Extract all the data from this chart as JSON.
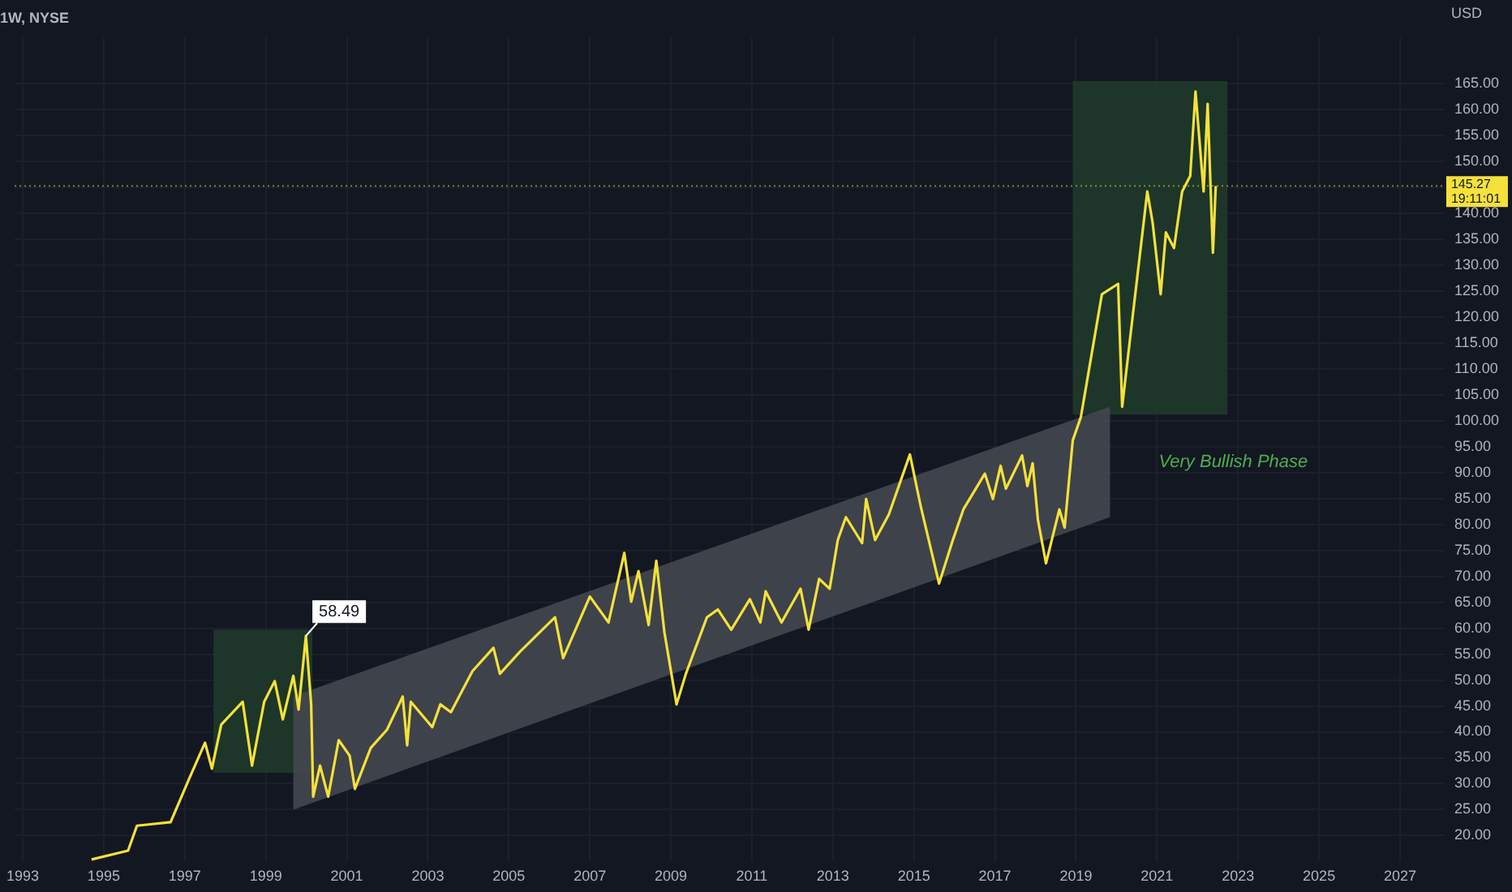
{
  "chart_data": {
    "type": "line",
    "title": "1W, NYSE",
    "ylabel": "USD",
    "xlim": [
      1992.8,
      2028.1
    ],
    "xticks": [
      1993,
      1995,
      1997,
      1999,
      2001,
      2003,
      2005,
      2007,
      2009,
      2011,
      2013,
      2015,
      2017,
      2019,
      2021,
      2023,
      2025,
      2027
    ],
    "ylim": [
      15,
      174
    ],
    "yticks": [
      {
        "value": 20,
        "label": "20.00"
      },
      {
        "value": 25,
        "label": "25.00"
      },
      {
        "value": 30,
        "label": "30.00"
      },
      {
        "value": 35,
        "label": "35.00"
      },
      {
        "value": 40,
        "label": "40.00"
      },
      {
        "value": 45,
        "label": "45.00"
      },
      {
        "value": 50,
        "label": "50.00"
      },
      {
        "value": 55,
        "label": "55.00"
      },
      {
        "value": 60,
        "label": "60.00"
      },
      {
        "value": 65,
        "label": "65.00"
      },
      {
        "value": 70,
        "label": "70.00"
      },
      {
        "value": 75,
        "label": "75.00"
      },
      {
        "value": 80,
        "label": "80.00"
      },
      {
        "value": 85,
        "label": "85.00"
      },
      {
        "value": 90,
        "label": "90.00"
      },
      {
        "value": 95,
        "label": "95.00"
      },
      {
        "value": 100,
        "label": "100.00"
      },
      {
        "value": 105,
        "label": "105.00"
      },
      {
        "value": 110,
        "label": "110.00"
      },
      {
        "value": 115,
        "label": "115.00"
      },
      {
        "value": 120,
        "label": "120.00"
      },
      {
        "value": 125,
        "label": "125.00"
      },
      {
        "value": 130,
        "label": "130.00"
      },
      {
        "value": 135,
        "label": "135.00"
      },
      {
        "value": 140,
        "label": "140.00"
      },
      {
        "value": 145,
        "label": null
      },
      {
        "value": 150,
        "label": "150.00"
      },
      {
        "value": 155,
        "label": "155.00"
      },
      {
        "value": 160,
        "label": "160.00"
      },
      {
        "value": 165,
        "label": "165.00"
      }
    ],
    "grid": true,
    "legend": false,
    "series": [
      {
        "type": "area",
        "color": "#1f3a2a",
        "x": [
          1997.71,
          2000.15
        ],
        "values": [
          null,
          null
        ],
        "lower": [
          32.1,
          32.1
        ],
        "upper": [
          59.7,
          59.7
        ]
      },
      {
        "type": "area",
        "color": "#1f3a2a",
        "x": [
          2018.92,
          2022.74
        ],
        "values": [
          null,
          null
        ],
        "lower": [
          101.2,
          101.2
        ],
        "upper": [
          165.5,
          165.5
        ]
      },
      {
        "type": "area",
        "color": "#44474f",
        "x": [
          1999.68,
          2019.84
        ],
        "values": [
          null,
          null
        ],
        "lower": [
          25.0,
          81.4
        ],
        "upper": [
          46.9,
          102.7
        ]
      },
      {
        "color": "#f5e13a",
        "x": [
          1994.7,
          1995.6,
          1995.82,
          1996.65,
          1997.11,
          1997.5,
          1997.67,
          1997.9,
          1998.43,
          1998.66,
          1998.96,
          1999.22,
          1999.42,
          1999.68,
          1999.81,
          1999.99,
          2000.12,
          2000.17,
          2000.34,
          2000.54,
          2000.8,
          2001.07,
          2001.2,
          2001.59,
          2001.99,
          2002.38,
          2002.49,
          2002.58,
          2003.11,
          2003.31,
          2003.57,
          2004.1,
          2004.62,
          2004.78,
          2005.28,
          2006.14,
          2006.34,
          2007.0,
          2007.46,
          2007.85,
          2008.02,
          2008.2,
          2008.45,
          2008.64,
          2008.84,
          2009.14,
          2009.37,
          2009.89,
          2010.16,
          2010.49,
          2010.95,
          2011.21,
          2011.34,
          2011.73,
          2012.2,
          2012.4,
          2012.66,
          2012.92,
          2013.12,
          2013.32,
          2013.72,
          2013.82,
          2014.04,
          2014.38,
          2014.9,
          2015.17,
          2015.62,
          2015.96,
          2016.22,
          2016.75,
          2016.95,
          2017.14,
          2017.27,
          2017.67,
          2017.8,
          2017.93,
          2018.06,
          2018.26,
          2018.59,
          2018.72,
          2018.92,
          2019.12,
          2019.25,
          2019.64,
          2020.04,
          2020.14,
          2020.36,
          2020.76,
          2020.89,
          2021.09,
          2021.22,
          2021.42,
          2021.62,
          2021.82,
          2021.95,
          2022.15,
          2022.25,
          2022.38,
          2022.45
        ],
        "values": [
          15.4,
          17.1,
          21.9,
          22.6,
          31.0,
          37.9,
          32.9,
          41.4,
          45.8,
          33.5,
          45.8,
          49.8,
          42.4,
          50.8,
          44.3,
          58.49,
          45.3,
          27.5,
          33.5,
          27.5,
          38.4,
          35.4,
          29.0,
          36.9,
          40.4,
          46.8,
          37.4,
          45.8,
          40.9,
          45.3,
          43.8,
          51.7,
          56.2,
          51.2,
          55.5,
          62.1,
          54.2,
          66.1,
          61.1,
          74.5,
          65.1,
          71.0,
          60.6,
          73.0,
          59.2,
          45.3,
          51.2,
          62.1,
          63.6,
          59.7,
          65.6,
          61.1,
          67.1,
          61.1,
          67.6,
          59.7,
          69.5,
          67.6,
          77.0,
          81.4,
          76.4,
          84.9,
          77.0,
          81.9,
          93.5,
          83.4,
          68.6,
          77.0,
          82.9,
          89.8,
          84.9,
          91.3,
          86.9,
          93.3,
          87.4,
          91.8,
          80.9,
          72.5,
          82.9,
          79.4,
          96.2,
          100.7,
          106.6,
          124.4,
          126.4,
          102.7,
          117.5,
          144.2,
          138.3,
          124.4,
          136.3,
          133.3,
          144.2,
          147.2,
          163.5,
          144.2,
          161.1,
          132.4,
          145.27
        ]
      }
    ],
    "ref_lines": [
      {
        "axis": "y",
        "value": 145.27,
        "label": "145.27\n19:11:01",
        "color": "#f5e13a"
      }
    ],
    "annotations": [
      {
        "text": "58.49",
        "x": 1999.99,
        "y": 58.49
      },
      "Very Bullish Phase"
    ]
  }
}
